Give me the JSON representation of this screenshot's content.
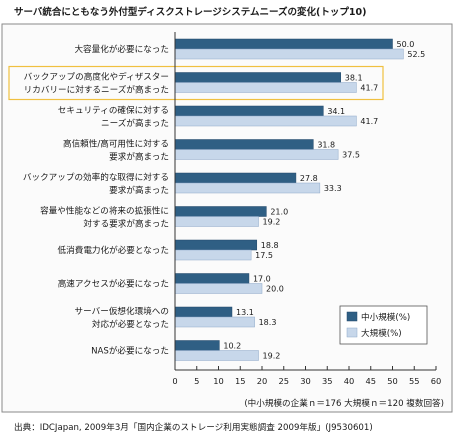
{
  "chart_data": {
    "type": "bar",
    "orientation": "horizontal",
    "title": "サーバ統合にともなう外付型ディスクストレージシステムニーズの変化(トップ10)",
    "categories": [
      [
        "大容量化が必要になった"
      ],
      [
        "バックアップの高度化やディザスター",
        "リカバリーに対するニーズが高まった"
      ],
      [
        "セキュリティの確保に対する",
        "ニーズが高まった"
      ],
      [
        "高信頼性/高可用性に対する",
        "要求が高まった"
      ],
      [
        "バックアップの効率的な取得に対する",
        "要求が高まった"
      ],
      [
        "容量や性能などの将来の拡張性に",
        "対する要求が高まった"
      ],
      [
        "低消費電力化が必要となった"
      ],
      [
        "高速アクセスが必要になった"
      ],
      [
        "サーバー仮想化環境への",
        "対応が必要となった"
      ],
      [
        "NASが必要になった"
      ]
    ],
    "highlighted_category_index": 1,
    "series": [
      {
        "name": "中小規模(%)",
        "color": "#2f5f84",
        "values": [
          50.0,
          38.1,
          34.1,
          31.8,
          27.8,
          21.0,
          18.8,
          17.0,
          13.1,
          10.2
        ]
      },
      {
        "name": "大規模(%)",
        "color": "#c7d7ea",
        "values": [
          52.5,
          41.7,
          41.7,
          37.5,
          33.3,
          19.2,
          17.5,
          20.0,
          18.3,
          19.2
        ]
      }
    ],
    "value_labels": [
      [
        "50.0",
        "38.1",
        "34.1",
        "31.8",
        "27.8",
        "21.0",
        "18.8",
        "17.0",
        "13.1",
        "10.2"
      ],
      [
        "52.5",
        "41.7",
        "41.7",
        "37.5",
        "33.3",
        "19.2",
        "17.5",
        "20.0",
        "18.3",
        "19.2"
      ]
    ],
    "xlim": [
      0,
      60
    ],
    "xticks": [
      "0",
      "5",
      "10",
      "15",
      "20",
      "25",
      "30",
      "35",
      "40",
      "45",
      "50",
      "55",
      "60"
    ],
    "grid": false,
    "legend_position": "bottom-right",
    "note": "(中小規模の企業ｎ＝176 大規模ｎ＝120 複数回答)",
    "source": "出典：IDCJapan, 2009年3月「国内企業のストレージ利用実態調査 2009年版」(J9530601)",
    "colors": {
      "highlight_border": "#f0c040",
      "axis": "#333333",
      "border": "#8a8a8a",
      "frame_bg": "#fbfbfb"
    }
  }
}
